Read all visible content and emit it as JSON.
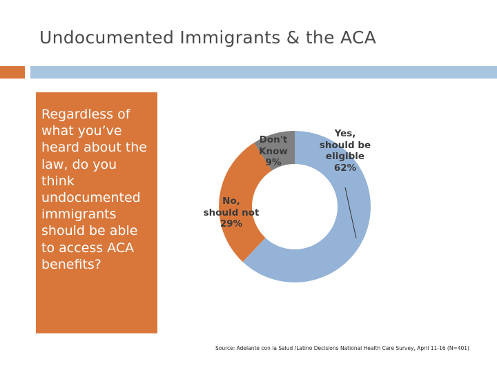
{
  "slide": {
    "title": "Undocumented Immigrants & the ACA",
    "question_lines": [
      "Regardless of",
      "what you’ve",
      "heard about the",
      "law, do you",
      "think",
      "undocumented",
      "immigrants",
      "should be able",
      "to access ACA",
      "benefits?"
    ],
    "source": "Source: Adelante con la Salud /Latino Decisions National Health Care Survey, April 11-16 (N=401)"
  },
  "colors": {
    "accent_orange": "#d9773b",
    "accent_blue": "#a9c4de",
    "yes_slice": "#95b3d7",
    "no_slice": "#d9773b",
    "dont_know_slice": "#808080"
  },
  "chart_data": {
    "type": "pie",
    "variant": "donut",
    "slices": [
      {
        "key": "yes",
        "label_lines": [
          "Yes,",
          "should be",
          "eligible"
        ],
        "value_label": "62%",
        "value": 62
      },
      {
        "key": "no",
        "label_lines": [
          "No,",
          "should not"
        ],
        "value_label": "29%",
        "value": 29
      },
      {
        "key": "dont_know",
        "label_lines": [
          "Don't",
          "Know"
        ],
        "value_label": "9%",
        "value": 9
      }
    ]
  }
}
